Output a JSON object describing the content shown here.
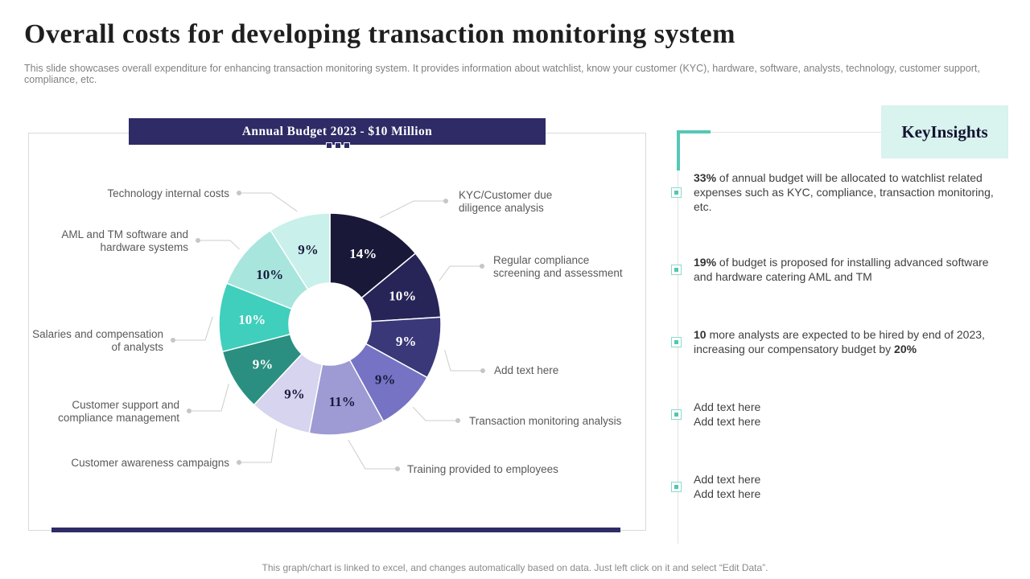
{
  "header": {
    "title": "Overall costs for developing transaction monitoring system",
    "subtitle": "This slide showcases overall expenditure for enhancing transaction monitoring system. It provides information about watchlist, know your customer (KYC), hardware, software, analysts, technology, customer support, compliance, etc."
  },
  "chart_data": {
    "type": "pie",
    "subtype": "donut",
    "title": "Annual Budget 2023 - $10 Million",
    "total": 100,
    "start_angle_deg": 0,
    "direction": "clockwise",
    "slices": [
      {
        "label": "KYC/Customer due diligence analysis",
        "value": 14,
        "color": "#1a1839",
        "text_color": "#ffffff"
      },
      {
        "label": "Regular compliance screening and assessment",
        "value": 10,
        "color": "#272458",
        "text_color": "#ffffff"
      },
      {
        "label": "Add text here",
        "value": 9,
        "color": "#3a3879",
        "text_color": "#ffffff"
      },
      {
        "label": "Transaction monitoring analysis",
        "value": 9,
        "color": "#7673c4",
        "text_color": "#1b1a3e"
      },
      {
        "label": "Training provided to employees",
        "value": 11,
        "color": "#9d9ad4",
        "text_color": "#1b1a3e"
      },
      {
        "label": "Customer awareness campaigns",
        "value": 9,
        "color": "#d6d4ee",
        "text_color": "#1b1a3e"
      },
      {
        "label": "Customer support and compliance management",
        "value": 9,
        "color": "#2a8f80",
        "text_color": "#ffffff"
      },
      {
        "label": "Salaries and compensation of analysts",
        "value": 10,
        "color": "#3fcfbc",
        "text_color": "#ffffff"
      },
      {
        "label": "AML and TM software and hardware systems",
        "value": 10,
        "color": "#a8e6dd",
        "text_color": "#1b1a3e"
      },
      {
        "label": "Technology internal costs",
        "value": 9,
        "color": "#c9f0ea",
        "text_color": "#1b1a3e"
      }
    ],
    "leader_line_color": "#cccccc",
    "banner_color": "#2e2b66",
    "legend_position": "callout-labels"
  },
  "insights": {
    "title": "Key Insights",
    "title_lines": [
      "Key",
      "Insights"
    ],
    "accent_color": "#56c7b6",
    "box_color": "#d9f3ee",
    "items": [
      {
        "parts": [
          {
            "text": "33%",
            "bold": true
          },
          {
            "text": " of annual budget will be allocated to watchlist related expenses such as KYC, compliance, transaction monitoring, etc.",
            "bold": false
          }
        ]
      },
      {
        "parts": [
          {
            "text": "19%",
            "bold": true
          },
          {
            "text": " of budget is proposed for installing advanced software and hardware catering AML and TM",
            "bold": false
          }
        ]
      },
      {
        "parts": [
          {
            "text": "10",
            "bold": true
          },
          {
            "text": " more analysts are expected to be hired by end of 2023, increasing our compensatory budget by ",
            "bold": false
          },
          {
            "text": "20%",
            "bold": true
          }
        ]
      },
      {
        "parts": [
          {
            "text": "Add text here",
            "bold": false
          },
          {
            "br": true
          },
          {
            "text": "Add text here",
            "bold": false
          }
        ]
      },
      {
        "parts": [
          {
            "text": "Add text here",
            "bold": false
          },
          {
            "br": true
          },
          {
            "text": "Add text here",
            "bold": false
          }
        ]
      }
    ]
  },
  "footer": {
    "note": "This graph/chart is linked to excel, and changes automatically based on data. Just left click on it and select “Edit Data”."
  }
}
